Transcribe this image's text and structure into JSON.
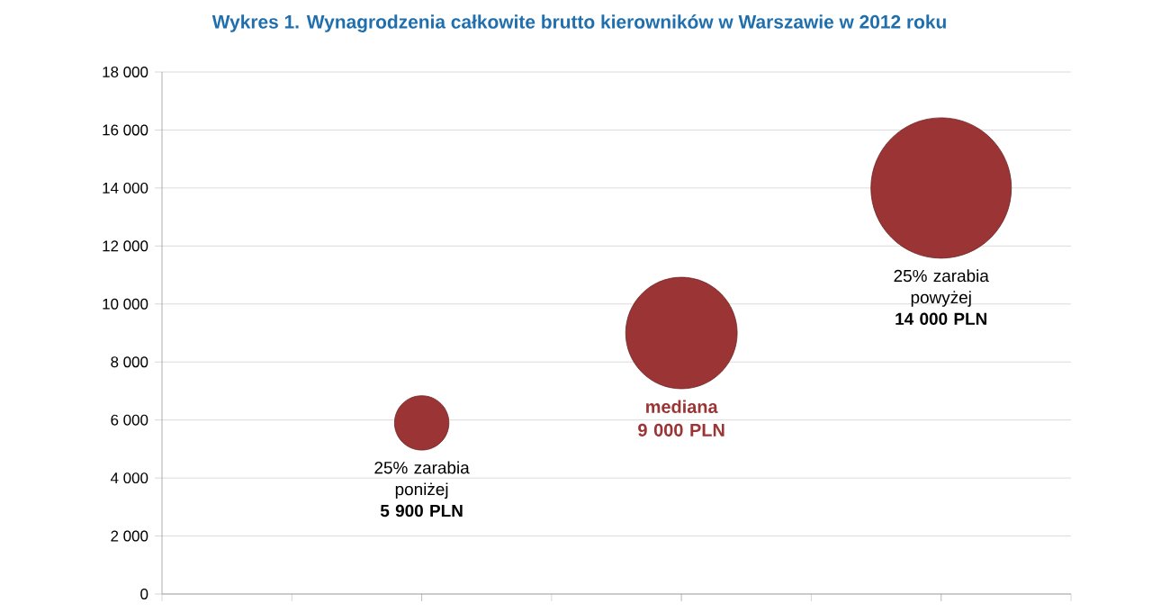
{
  "chart_data": {
    "type": "bubble",
    "title": "Wykres 1. Wynagrodzenia całkowite brutto kierowników w Warszawie w 2012 roku",
    "categories": [
      null,
      null,
      null
    ],
    "values": [
      5900,
      9000,
      14000
    ],
    "sizes": [
      0.15,
      0.63,
      1
    ],
    "color": "#9b3434",
    "ylim": [
      0,
      18000
    ],
    "yticks": [
      {
        "value": 0,
        "label": "0"
      },
      {
        "value": 2000,
        "label": "2 000"
      },
      {
        "value": 4000,
        "label": "4 000"
      },
      {
        "value": 6000,
        "label": "6 000"
      },
      {
        "value": 8000,
        "label": "8 000"
      },
      {
        "value": 10000,
        "label": "10 000"
      },
      {
        "value": 12000,
        "label": "12 000"
      },
      {
        "value": 14000,
        "label": "14 000"
      },
      {
        "value": 16000,
        "label": "16 000"
      },
      {
        "value": 18000,
        "label": "18 000"
      }
    ],
    "grid": "y",
    "tick_labels": "y",
    "annotations": [
      "25% zarabia poniżej **5 900 PLN**",
      "**mediana** **9 000 PLN**",
      "25% zarabia powyżej **14 000 PLN**"
    ]
  }
}
